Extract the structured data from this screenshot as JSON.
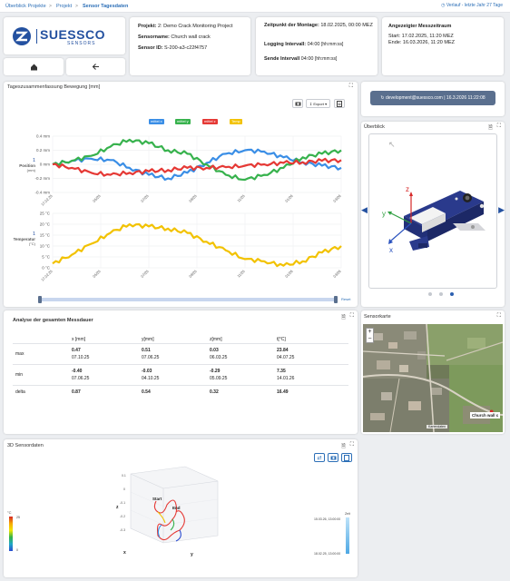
{
  "breadcrumb": {
    "items": [
      "Überblick Projekte",
      "Projekt",
      "Sensor Tagesdaten"
    ],
    "separator": ">",
    "history_link": "Verlauf - letzte Jahr 27 Tage"
  },
  "logo": {
    "brand": "SUESSCO",
    "tagline": "SENSORS"
  },
  "nav": {
    "home_icon": "home-icon",
    "back_icon": "arrow-left-icon"
  },
  "project_info": {
    "project_label": "Projekt:",
    "project_value": "2: Demo Crack Monitoring Project",
    "name_label": "Sensorname:",
    "name_value": "Church wall crack",
    "id_label": "Sensor ID:",
    "id_value": "S-200-a3-c22f4757"
  },
  "mounting": {
    "time_label": "Zeitpunkt der Montage:",
    "time_value": "18.02.2025, 00:00 MEZ",
    "logging_label": "Logging Intervall:",
    "logging_value": "04:00",
    "logging_unit": "[hh:mm:ss]",
    "send_label": "Sende Intervall",
    "send_value": "04:00",
    "send_unit": "[hh:mm:ss]"
  },
  "period": {
    "title": "Angezeigter Messzeitraum",
    "start_label": "Start:",
    "start_value": "17.02.2025, 11:20 MEZ",
    "end_label": "Ende:",
    "end_value": "16.03.2026, 11:20 MEZ"
  },
  "user_button": "development@suessco.com | 16.3.2026 11:22:08",
  "daily_chart": {
    "title": "Tageszusammenfassung Bewegung [mm]",
    "export_label": "Export",
    "reset_label": "Reset",
    "chart_data": {
      "type": "line",
      "x": [
        "17.02.25",
        "05/25",
        "07/25",
        "09/25",
        "11/25",
        "01/26",
        "03/26"
      ],
      "position": {
        "ylabel": "Position",
        "ylabel_index": "1",
        "ylabel_unit": "(mm)",
        "ylim": [
          -0.4,
          0.4
        ],
        "ticks": [
          "0.4 mm",
          "0.2 mm",
          "0 mm",
          "-0.2 mm",
          "-0.4 mm"
        ],
        "series": [
          {
            "name": "mittel x",
            "color": "#3a8ee6",
            "values": [
              0.0,
              0.05,
              0.08,
              0.06,
              -0.05,
              -0.15,
              -0.2,
              -0.12,
              0.02,
              0.15,
              0.2,
              0.18,
              0.1,
              0.03,
              -0.02,
              -0.05
            ]
          },
          {
            "name": "mittel y",
            "color": "#37b24d",
            "values": [
              0.0,
              0.05,
              0.12,
              0.25,
              0.35,
              0.3,
              0.2,
              0.15,
              0.0,
              -0.15,
              -0.22,
              -0.15,
              -0.05,
              0.1,
              0.15,
              0.2
            ]
          },
          {
            "name": "mittel z",
            "color": "#e53935",
            "values": [
              0.0,
              -0.05,
              -0.12,
              -0.15,
              -0.12,
              -0.1,
              -0.08,
              -0.05,
              -0.05,
              -0.04,
              -0.02,
              0.0,
              0.02,
              0.03,
              0.05,
              0.06
            ]
          }
        ]
      },
      "temperature": {
        "ylabel": "Temperatur",
        "ylabel_index": "1",
        "ylabel_unit": "(°C)",
        "ylim": [
          0,
          25
        ],
        "ticks": [
          "25 °C",
          "20 °C",
          "15 °C",
          "10 °C",
          "5 °C",
          "0 °C"
        ],
        "series": [
          {
            "name": "Temp",
            "color": "#f2c200",
            "values": [
              2,
              6,
              11,
              16,
              20,
              19,
              18,
              16,
              12,
              8,
              4,
              3,
              1,
              3,
              7,
              10
            ]
          }
        ]
      }
    }
  },
  "sensor_image": {
    "title": "Überblick",
    "axis_x": "x",
    "axis_y": "y",
    "axis_z": "z"
  },
  "analysis": {
    "title": "Analyse der gesamten Messdauer",
    "headers": [
      "",
      "x [mm]",
      "y[mm]",
      "z[mm]",
      "t[°C]"
    ],
    "rows": [
      {
        "label": "max",
        "values": [
          "0.47",
          "0.51",
          "0.03",
          "23.84"
        ],
        "dates": [
          "07.10.25",
          "07.06.25",
          "06.03.25",
          "04.07.25"
        ]
      },
      {
        "label": "min",
        "values": [
          "-0.40",
          "-0.03",
          "-0.29",
          "7.35"
        ],
        "dates": [
          "07.06.25",
          "04.10.25",
          "05.09.25",
          "14.01.26"
        ]
      },
      {
        "label": "delta",
        "values": [
          "0.87",
          "0.54",
          "0.32",
          "16.49"
        ]
      }
    ]
  },
  "map": {
    "title": "Sensorkarte",
    "zoom_in": "+",
    "zoom_out": "−",
    "marker_label": "Church wall c",
    "attribution": "Kartendaten"
  },
  "sensor_3d": {
    "title": "3D Sensordaten",
    "temp_unit": "°C",
    "temp_max": "25",
    "temp_min": "0",
    "start_label": "Start",
    "end_label": "End",
    "z_label": "z",
    "x_label": "x",
    "y_label": "y",
    "z_ticks": [
      "0.1",
      "0",
      "-0.1",
      "-0.2",
      "-0.3"
    ],
    "time_top": "15.03.26, 13:00:00",
    "time_bottom": "18.02.25, 13:00:00",
    "time_unit": "Zeit"
  }
}
